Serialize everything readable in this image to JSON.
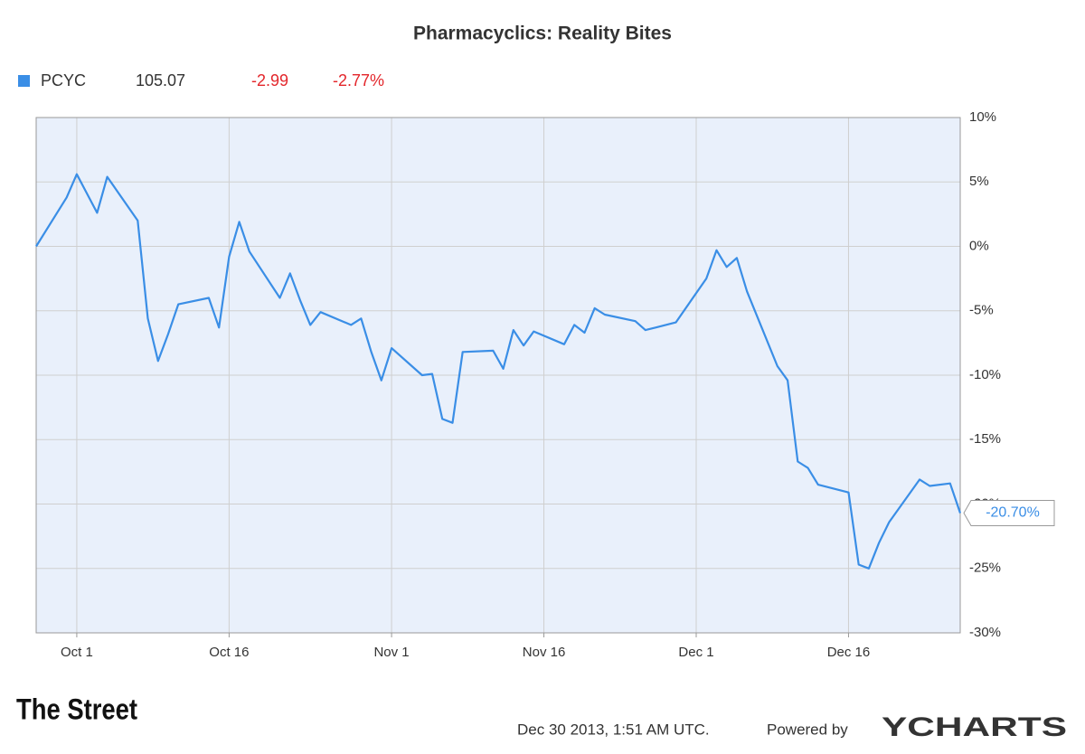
{
  "chart_data": {
    "type": "line",
    "title": "Pharmacyclics: Reality Bites",
    "quote": {
      "symbol": "PCYC",
      "price": "105.07",
      "change": "-2.99",
      "change_percent": "-2.77%"
    },
    "x": [
      "2013-09-27",
      "2013-09-30",
      "2013-10-01",
      "2013-10-02",
      "2013-10-03",
      "2013-10-04",
      "2013-10-07",
      "2013-10-08",
      "2013-10-09",
      "2013-10-10",
      "2013-10-11",
      "2013-10-14",
      "2013-10-15",
      "2013-10-16",
      "2013-10-17",
      "2013-10-18",
      "2013-10-21",
      "2013-10-22",
      "2013-10-23",
      "2013-10-24",
      "2013-10-25",
      "2013-10-28",
      "2013-10-29",
      "2013-10-30",
      "2013-10-31",
      "2013-11-01",
      "2013-11-04",
      "2013-11-05",
      "2013-11-06",
      "2013-11-07",
      "2013-11-08",
      "2013-11-11",
      "2013-11-12",
      "2013-11-13",
      "2013-11-14",
      "2013-11-15",
      "2013-11-18",
      "2013-11-19",
      "2013-11-20",
      "2013-11-21",
      "2013-11-22",
      "2013-11-25",
      "2013-11-26",
      "2013-11-27",
      "2013-11-29",
      "2013-12-02",
      "2013-12-03",
      "2013-12-04",
      "2013-12-05",
      "2013-12-06",
      "2013-12-09",
      "2013-12-10",
      "2013-12-11",
      "2013-12-12",
      "2013-12-13",
      "2013-12-16",
      "2013-12-17",
      "2013-12-18",
      "2013-12-19",
      "2013-12-20",
      "2013-12-23",
      "2013-12-24",
      "2013-12-26",
      "2013-12-27"
    ],
    "series": [
      {
        "name": "PCYC",
        "color": "#3a8ee6",
        "values": [
          0,
          3.8,
          5.6,
          4.1,
          2.6,
          5.4,
          2.0,
          -5.6,
          -8.9,
          -6.8,
          -4.5,
          -4.0,
          -6.3,
          -0.8,
          1.9,
          -0.4,
          -4.0,
          -2.1,
          -4.2,
          -6.1,
          -5.1,
          -6.1,
          -5.6,
          -8.2,
          -10.4,
          -7.9,
          -10.0,
          -9.9,
          -13.4,
          -13.7,
          -8.2,
          -8.1,
          -9.5,
          -6.5,
          -7.7,
          -6.6,
          -7.6,
          -6.1,
          -6.7,
          -4.8,
          -5.3,
          -5.8,
          -6.5,
          -6.3,
          -5.9,
          -2.5,
          -0.3,
          -1.6,
          -0.9,
          -3.5,
          -9.3,
          -10.4,
          -16.7,
          -17.2,
          -18.5,
          -19.1,
          -24.7,
          -25.0,
          -23.0,
          -21.4,
          -18.1,
          -18.6,
          -18.4,
          -20.7
        ],
        "value_labels": [
          null,
          null,
          null,
          null,
          null,
          null,
          null,
          null,
          null,
          null,
          null,
          null,
          null,
          null,
          null,
          null,
          null,
          null,
          null,
          null,
          null,
          null,
          null,
          null,
          null,
          null,
          null,
          null,
          null,
          null,
          null,
          null,
          null,
          null,
          null,
          null,
          null,
          null,
          null,
          null,
          null,
          null,
          null,
          null,
          null,
          null,
          null,
          null,
          null,
          null,
          null,
          null,
          null,
          null,
          null,
          null,
          null,
          null,
          null,
          null,
          null,
          null,
          null,
          "-20.70%"
        ]
      }
    ],
    "xlim": [
      "2013-09-27",
      "2013-12-27"
    ],
    "xticks": [
      {
        "value": "2013-10-01",
        "label": "Oct 1"
      },
      {
        "value": "2013-10-16",
        "label": "Oct 16"
      },
      {
        "value": "2013-11-01",
        "label": "Nov 1"
      },
      {
        "value": "2013-11-16",
        "label": "Nov 16"
      },
      {
        "value": "2013-12-01",
        "label": "Dec 1"
      },
      {
        "value": "2013-12-16",
        "label": "Dec 16"
      }
    ],
    "ylim": [
      -30,
      10
    ],
    "yticks": [
      {
        "value": 10,
        "label": "10%"
      },
      {
        "value": 5,
        "label": "5%"
      },
      {
        "value": 0,
        "label": "0%"
      },
      {
        "value": -5,
        "label": "-5%"
      },
      {
        "value": -10,
        "label": "-10%"
      },
      {
        "value": -15,
        "label": "-15%"
      },
      {
        "value": -20,
        "label": "-20%"
      },
      {
        "value": -25,
        "label": "-25%"
      },
      {
        "value": -30,
        "label": "-30%"
      }
    ],
    "grid": true,
    "footer": {
      "brand": "The Street",
      "timestamp": "Dec 30 2013, 1:51 AM UTC.",
      "powered_by": "Powered by",
      "provider": "YCHARTS"
    }
  }
}
